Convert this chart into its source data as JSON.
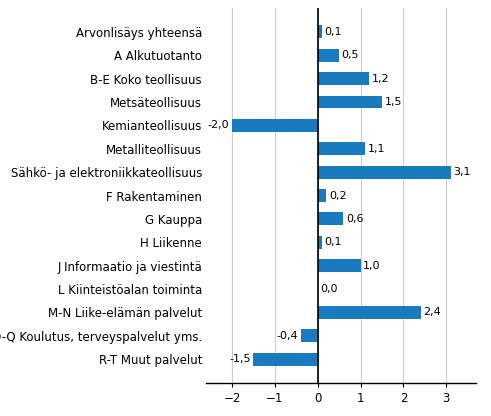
{
  "categories": [
    "R-T Muut palvelut",
    "O-Q Koulutus, terveyspalvelut yms.",
    "M-N Liike-elämän palvelut",
    "L Kiinteistöalan toiminta",
    "J Informaatio ja viestintä",
    "H Liikenne",
    "G Kauppa",
    "F Rakentaminen",
    "Sähkö- ja elektroniikkateollisuus",
    "Metalliteollisuus",
    "Kemianteollisuus",
    "Metsäteollisuus",
    "B-E Koko teollisuus",
    "A Alkutuotanto",
    "Arvonlisäys yhteensä"
  ],
  "values": [
    -1.5,
    -0.4,
    2.4,
    0.0,
    1.0,
    0.1,
    0.6,
    0.2,
    3.1,
    1.1,
    -2.0,
    1.5,
    1.2,
    0.5,
    0.1
  ],
  "bar_color": "#1a7abf",
  "xlim": [
    -2.6,
    3.7
  ],
  "xticks": [
    -2,
    -1,
    0,
    1,
    2,
    3
  ],
  "value_label_fontsize": 8.0,
  "category_fontsize": 8.5,
  "tick_fontsize": 8.5,
  "background_color": "#ffffff",
  "grid_color": "#cccccc",
  "bar_height": 0.55
}
